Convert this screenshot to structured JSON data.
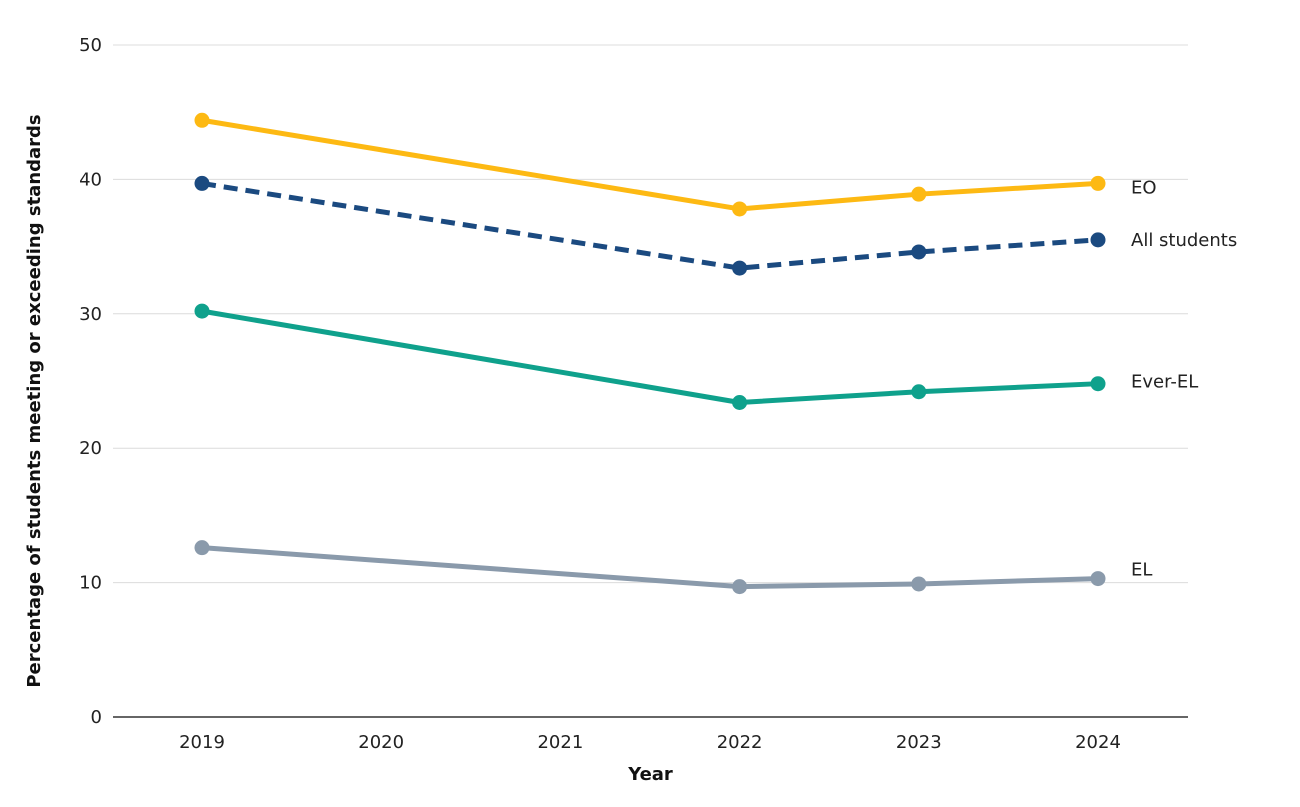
{
  "chart_data": {
    "type": "line",
    "title": "",
    "xlabel": "Year",
    "ylabel": "Percentage of students meeting or exceeding standards",
    "ylim": [
      0,
      50
    ],
    "yticks": [
      0,
      10,
      20,
      30,
      40,
      50
    ],
    "categories": [
      "2019",
      "2020",
      "2021",
      "2022",
      "2023",
      "2024"
    ],
    "grid": true,
    "legend": "direct labels at right end of lines",
    "series": [
      {
        "name": "EO",
        "color": "#FDB913",
        "style": "solid",
        "x": [
          "2019",
          "2022",
          "2023",
          "2024"
        ],
        "values": [
          44.4,
          37.8,
          38.9,
          39.7
        ]
      },
      {
        "name": "All students",
        "color": "#1B4A80",
        "style": "dashed",
        "x": [
          "2019",
          "2022",
          "2023",
          "2024"
        ],
        "values": [
          39.7,
          33.4,
          34.6,
          35.5
        ]
      },
      {
        "name": "Ever-EL",
        "color": "#0FA18C",
        "style": "solid",
        "x": [
          "2019",
          "2022",
          "2023",
          "2024"
        ],
        "values": [
          30.2,
          23.4,
          24.2,
          24.8
        ]
      },
      {
        "name": "EL",
        "color": "#8A9AAB",
        "style": "solid",
        "x": [
          "2019",
          "2022",
          "2023",
          "2024"
        ],
        "values": [
          12.6,
          9.7,
          9.9,
          10.3
        ]
      }
    ]
  }
}
